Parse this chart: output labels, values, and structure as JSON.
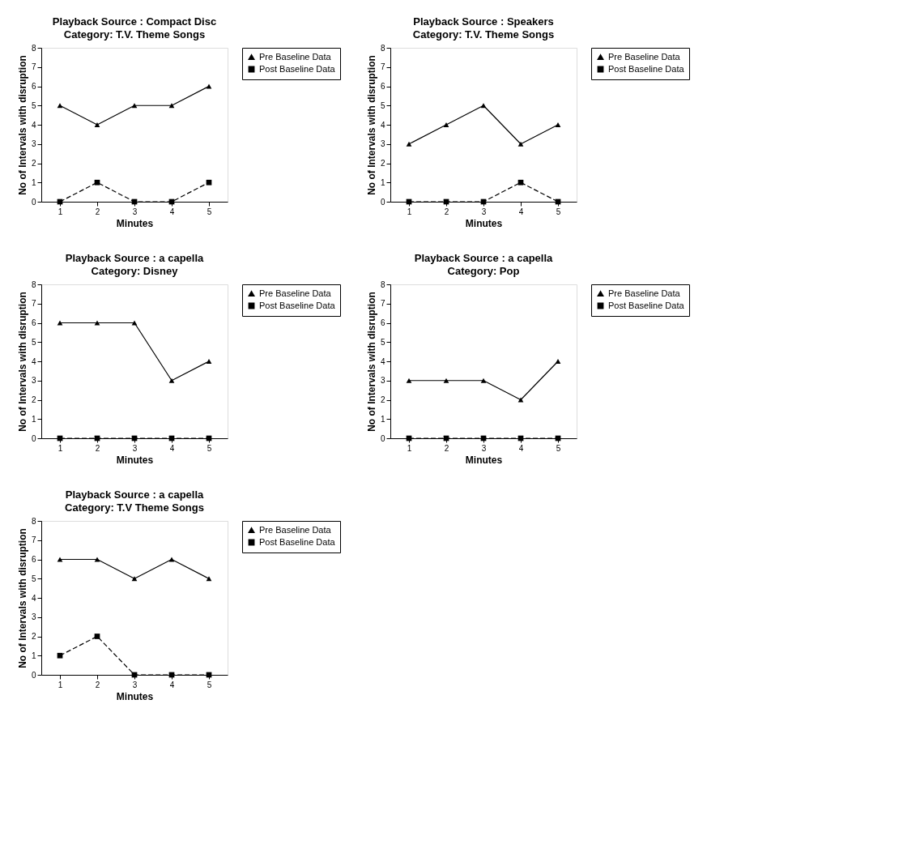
{
  "chart_data": [
    {
      "type": "line",
      "title": "Playback Source : Compact Disc",
      "subtitle": "Category: T.V. Theme Songs",
      "xlabel": "Minutes",
      "ylabel": "No of Intervals with disruption",
      "categories": [
        "1",
        "2",
        "3",
        "4",
        "5"
      ],
      "ylim": [
        0,
        8
      ],
      "yticks": [
        0,
        1,
        2,
        3,
        4,
        5,
        6,
        7,
        8
      ],
      "grid": false,
      "legend": "right",
      "series": [
        {
          "name": "Pre Baseline Data",
          "color": "#000000",
          "marker": "triangle",
          "line_style": "solid",
          "values": [
            5,
            4,
            5,
            5,
            6
          ]
        },
        {
          "name": "Post Baseline Data",
          "color": "#000000",
          "marker": "square",
          "line_style": "dashed",
          "values": [
            0,
            1,
            0,
            0,
            1
          ]
        }
      ]
    },
    {
      "type": "line",
      "title": "Playback Source : Speakers",
      "subtitle": "Category: T.V. Theme Songs",
      "xlabel": "Minutes",
      "ylabel": "No of Intervals with disruption",
      "categories": [
        "1",
        "2",
        "3",
        "4",
        "5"
      ],
      "ylim": [
        0,
        8
      ],
      "yticks": [
        0,
        1,
        2,
        3,
        4,
        5,
        6,
        7,
        8
      ],
      "grid": false,
      "legend": "right",
      "series": [
        {
          "name": "Pre Baseline Data",
          "color": "#000000",
          "marker": "triangle",
          "line_style": "solid",
          "values": [
            3,
            4,
            5,
            3,
            4
          ]
        },
        {
          "name": "Post Baseline Data",
          "color": "#000000",
          "marker": "square",
          "line_style": "dashed",
          "values": [
            0,
            0,
            0,
            1,
            0
          ]
        }
      ]
    },
    {
      "type": "line",
      "title": "Playback Source : a capella",
      "subtitle": "Category: Disney",
      "xlabel": "Minutes",
      "ylabel": "No of Intervals with disruption",
      "categories": [
        "1",
        "2",
        "3",
        "4",
        "5"
      ],
      "ylim": [
        0,
        8
      ],
      "yticks": [
        0,
        1,
        2,
        3,
        4,
        5,
        6,
        7,
        8
      ],
      "grid": false,
      "legend": "right",
      "series": [
        {
          "name": "Pre Baseline Data",
          "color": "#000000",
          "marker": "triangle",
          "line_style": "solid",
          "values": [
            6,
            6,
            6,
            3,
            4
          ]
        },
        {
          "name": "Post Baseline Data",
          "color": "#000000",
          "marker": "square",
          "line_style": "dashed",
          "values": [
            0,
            0,
            0,
            0,
            0
          ]
        }
      ]
    },
    {
      "type": "line",
      "title": "Playback Source : a capella",
      "subtitle": "Category: Pop",
      "xlabel": "Minutes",
      "ylabel": "No of Intervals with disruption",
      "categories": [
        "1",
        "2",
        "3",
        "4",
        "5"
      ],
      "ylim": [
        0,
        8
      ],
      "yticks": [
        0,
        1,
        2,
        3,
        4,
        5,
        6,
        7,
        8
      ],
      "grid": false,
      "legend": "right",
      "series": [
        {
          "name": "Pre Baseline Data",
          "color": "#000000",
          "marker": "triangle",
          "line_style": "solid",
          "values": [
            3,
            3,
            3,
            2,
            4
          ]
        },
        {
          "name": "Post Baseline Data",
          "color": "#000000",
          "marker": "square",
          "line_style": "dashed",
          "values": [
            0,
            0,
            0,
            0,
            0
          ]
        }
      ]
    },
    {
      "type": "line",
      "title": "Playback Source : a capella",
      "subtitle": "Category: T.V Theme Songs",
      "xlabel": "Minutes",
      "ylabel": "No of Intervals with disruption",
      "categories": [
        "1",
        "2",
        "3",
        "4",
        "5"
      ],
      "ylim": [
        0,
        8
      ],
      "yticks": [
        0,
        1,
        2,
        3,
        4,
        5,
        6,
        7,
        8
      ],
      "grid": false,
      "legend": "right",
      "series": [
        {
          "name": "Pre Baseline Data",
          "color": "#000000",
          "marker": "triangle",
          "line_style": "solid",
          "values": [
            6,
            6,
            5,
            6,
            5
          ]
        },
        {
          "name": "Post Baseline Data",
          "color": "#000000",
          "marker": "square",
          "line_style": "dashed",
          "values": [
            1,
            2,
            0,
            0,
            0
          ]
        }
      ]
    }
  ]
}
